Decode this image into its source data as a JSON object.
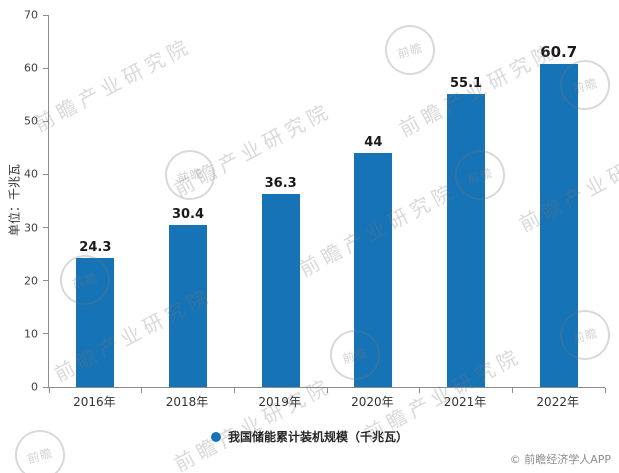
{
  "y_axis_label": "单位：千兆瓦",
  "legend": {
    "label": "我国储能累计装机规模（千兆瓦）"
  },
  "copyright": "© 前瞻经济学人APP",
  "watermark": {
    "text": "前瞻产业研究院",
    "logo_text": "前瞻"
  },
  "chart_data": {
    "type": "bar",
    "categories": [
      "2016年",
      "2018年",
      "2019年",
      "2020年",
      "2021年",
      "2022年"
    ],
    "values": [
      24.3,
      30.4,
      36.3,
      44,
      55.1,
      60.7
    ],
    "title": "",
    "xlabel": "",
    "ylabel": "单位：千兆瓦",
    "ylim": [
      0,
      70
    ],
    "y_ticks": [
      0,
      10,
      20,
      30,
      40,
      50,
      60,
      70
    ],
    "legend": [
      "我国储能累计装机规模（千兆瓦）"
    ],
    "legend_position": "bottom",
    "grid": false,
    "bar_color": "#1673b6"
  }
}
